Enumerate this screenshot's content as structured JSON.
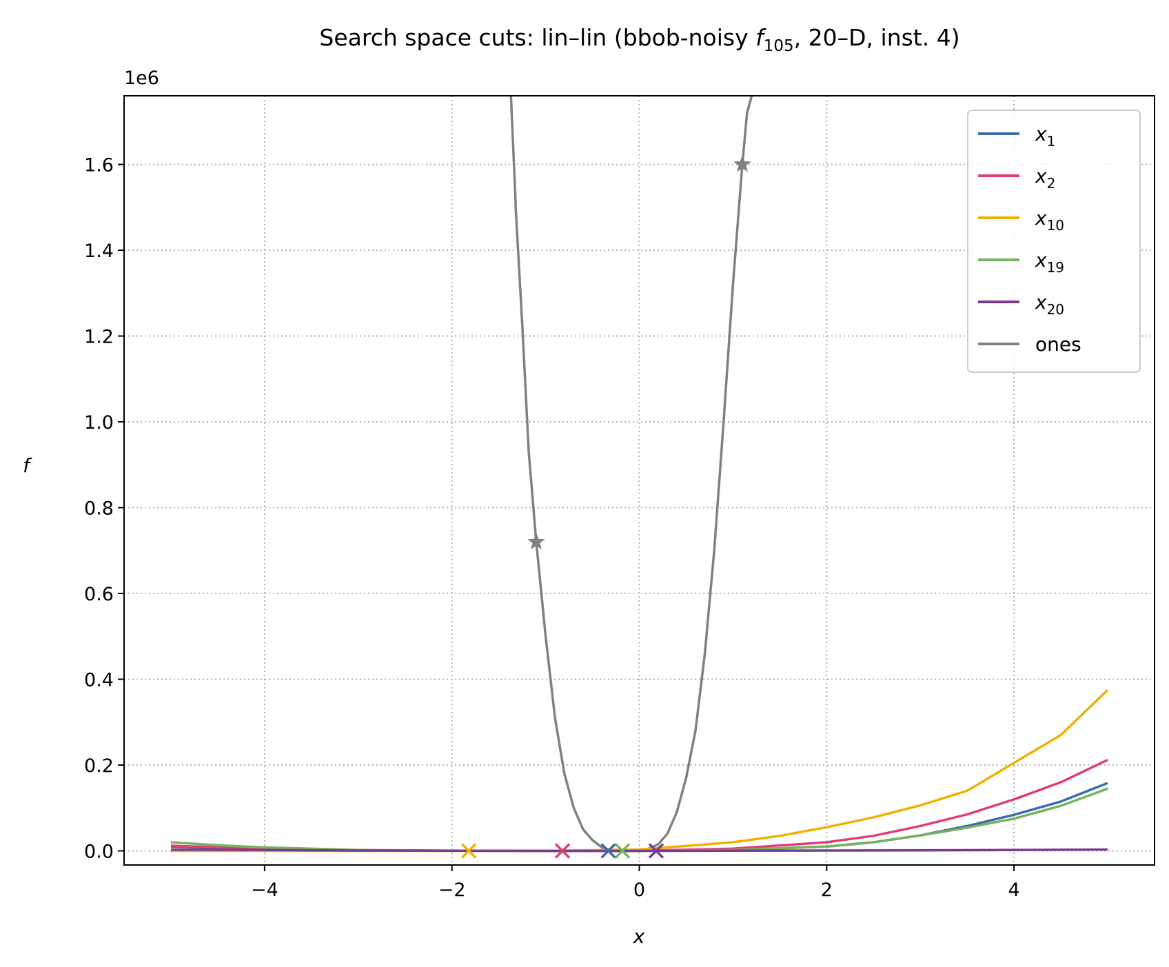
{
  "chart_data": {
    "type": "line",
    "title": "Search space cuts: lin–lin (bbob-noisy f105, 20–D, inst. 4)",
    "title_parts": {
      "before": "Search space cuts: lin–lin (bbob-noisy ",
      "f": "f",
      "sub": "105",
      "after": ", 20–D, inst. 4)"
    },
    "xlabel": "x",
    "ylabel": "f",
    "y_offset_label": "1e6",
    "xlim": [
      -5.5,
      5.5
    ],
    "ylim": [
      -0.033,
      1.76
    ],
    "y_scale_factor": 1000000,
    "grid": true,
    "grid_style": "dotted",
    "legend_position": "top-right",
    "x_ticks": [
      {
        "value": -4,
        "label": "−4"
      },
      {
        "value": -2,
        "label": "−2"
      },
      {
        "value": 0,
        "label": "0"
      },
      {
        "value": 2,
        "label": "2"
      },
      {
        "value": 4,
        "label": "4"
      }
    ],
    "y_ticks": [
      {
        "value": 0.0,
        "label": "0.0"
      },
      {
        "value": 0.2,
        "label": "0.2"
      },
      {
        "value": 0.4,
        "label": "0.4"
      },
      {
        "value": 0.6,
        "label": "0.6"
      },
      {
        "value": 0.8,
        "label": "0.8"
      },
      {
        "value": 1.0,
        "label": "1.0"
      },
      {
        "value": 1.2,
        "label": "1.2"
      },
      {
        "value": 1.4,
        "label": "1.4"
      },
      {
        "value": 1.6,
        "label": "1.6"
      }
    ],
    "series": [
      {
        "name": "x1",
        "label_base": "x",
        "label_sub": "1",
        "color": "#3b6aad",
        "x": [
          -5,
          -4,
          -3,
          -2,
          -1,
          0,
          1,
          2,
          2.5,
          3,
          3.5,
          4,
          4.5,
          5
        ],
        "y": [
          0.01,
          0.004,
          0.001,
          0.0002,
          0.0,
          0.0,
          0.002,
          0.01,
          0.02,
          0.036,
          0.058,
          0.084,
          0.115,
          0.158
        ],
        "optimum": {
          "x": -0.33,
          "y": 0.0,
          "marker": "x"
        }
      },
      {
        "name": "x2",
        "label_base": "x",
        "label_sub": "2",
        "color": "#e03e72",
        "x": [
          -5,
          -4,
          -3,
          -2,
          -1,
          0,
          1,
          2,
          2.5,
          3,
          3.5,
          4,
          4.5,
          5
        ],
        "y": [
          0.012,
          0.005,
          0.0015,
          0.0003,
          0.0,
          0.0002,
          0.005,
          0.02,
          0.035,
          0.058,
          0.085,
          0.12,
          0.16,
          0.212
        ],
        "optimum": {
          "x": -0.82,
          "y": 0.0,
          "marker": "x"
        }
      },
      {
        "name": "x10",
        "label_base": "x",
        "label_sub": "10",
        "color": "#f0b000",
        "x": [
          -5,
          -4,
          -3,
          -2,
          -1,
          0,
          1,
          1.5,
          2,
          2.5,
          3,
          3.5,
          4,
          4.5,
          5
        ],
        "y": [
          0.0,
          0.0,
          0.0,
          0.0,
          0.0,
          0.003,
          0.02,
          0.035,
          0.055,
          0.078,
          0.106,
          0.14,
          0.205,
          0.27,
          0.375
        ],
        "optimum": {
          "x": -1.82,
          "y": 0.0,
          "marker": "x"
        }
      },
      {
        "name": "x19",
        "label_base": "x",
        "label_sub": "19",
        "color": "#76b35a",
        "x": [
          -5,
          -4.5,
          -4,
          -3,
          -2,
          -1,
          0,
          1,
          2,
          2.5,
          3,
          3.5,
          4,
          4.5,
          5
        ],
        "y": [
          0.02,
          0.013,
          0.008,
          0.002,
          0.0003,
          0.0,
          0.0002,
          0.002,
          0.01,
          0.02,
          0.036,
          0.054,
          0.075,
          0.105,
          0.145
        ],
        "optimum": {
          "x": -0.18,
          "y": 0.0,
          "marker": "x"
        }
      },
      {
        "name": "x20",
        "label_base": "x",
        "label_sub": "20",
        "color": "#7b3a8f",
        "x": [
          -5,
          -3,
          -1,
          0,
          1,
          3,
          5
        ],
        "y": [
          0.003,
          0.0008,
          0.0,
          0.0,
          0.0002,
          0.001,
          0.003
        ],
        "optimum": {
          "x": 0.18,
          "y": 0.0,
          "marker": "x"
        }
      },
      {
        "name": "ones",
        "label_base": "ones",
        "label_sub": "",
        "color": "#808080",
        "x": [
          -1.37,
          -1.32,
          -1.32,
          -1.25,
          -1.18,
          -1.1,
          -1.0,
          -0.9,
          -0.8,
          -0.7,
          -0.6,
          -0.5,
          -0.4,
          -0.3,
          -0.2,
          -0.1,
          0.0,
          0.1,
          0.2,
          0.3,
          0.4,
          0.5,
          0.6,
          0.7,
          0.8,
          0.9,
          1.0,
          1.1,
          1.15,
          1.2
        ],
        "y": [
          1.76,
          1.51,
          1.5,
          1.23,
          0.93,
          0.72,
          0.5,
          0.31,
          0.18,
          0.1,
          0.05,
          0.025,
          0.008,
          0.001,
          0.0,
          0.0,
          0.001,
          0.005,
          0.015,
          0.04,
          0.09,
          0.17,
          0.28,
          0.46,
          0.7,
          1.0,
          1.32,
          1.6,
          1.72,
          1.76
        ],
        "stars": [
          {
            "x": -1.1,
            "y": 0.72
          },
          {
            "x": 1.1,
            "y": 1.6
          }
        ]
      }
    ]
  }
}
